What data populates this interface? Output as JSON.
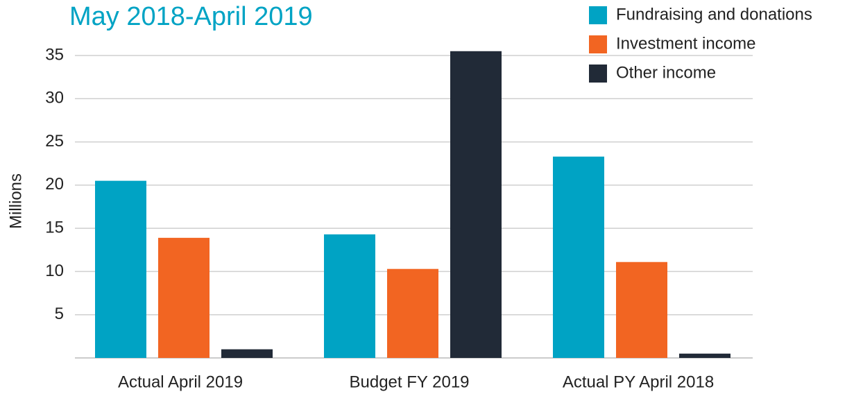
{
  "chart_data": {
    "type": "bar",
    "title": "May 2018-April 2019",
    "y_label": "Millions",
    "categories": [
      "Actual April 2019",
      "Budget FY 2019",
      "Actual PY April 2018"
    ],
    "series": [
      {
        "name": "Fundraising and donations",
        "color": "#00a3c4",
        "values": [
          20.5,
          14.3,
          23.3
        ]
      },
      {
        "name": "Investment income",
        "color": "#f26522",
        "values": [
          13.9,
          10.3,
          11.1
        ]
      },
      {
        "name": "Other income",
        "color": "#212a37",
        "values": [
          1.0,
          35.5,
          0.5
        ]
      }
    ],
    "ylim": [
      0,
      35
    ],
    "yticks": [
      5,
      10,
      15,
      20,
      25,
      30,
      35
    ],
    "grid": true,
    "legend": "top-right"
  }
}
